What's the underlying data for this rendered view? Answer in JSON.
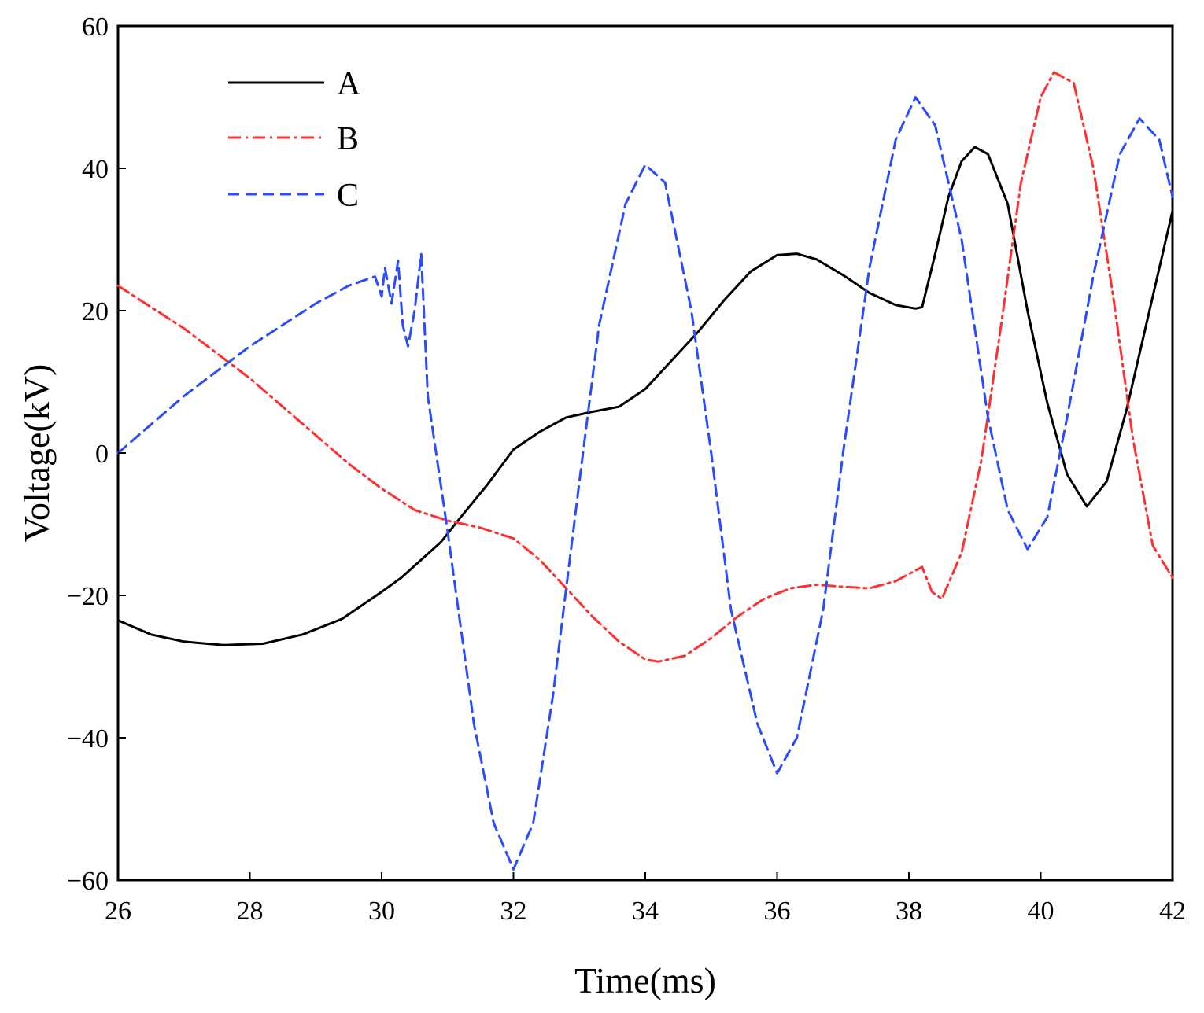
{
  "chart_data": {
    "type": "line",
    "title": "",
    "xlabel": "Time(ms)",
    "ylabel": "Voltage(kV)",
    "xlim": [
      26,
      42
    ],
    "ylim": [
      -60,
      60
    ],
    "xticks": [
      26,
      28,
      30,
      32,
      34,
      36,
      38,
      40,
      42
    ],
    "yticks": [
      60,
      40,
      20,
      0,
      -20,
      -40,
      -60
    ],
    "ytick_labels": [
      "60",
      "40",
      "20",
      "0",
      "−20",
      "−40",
      "−60"
    ],
    "grid": false,
    "legend_position": "top-left",
    "series": [
      {
        "name": "A",
        "color": "#000000",
        "style": "solid",
        "x": [
          26,
          26.5,
          27,
          27.6,
          28.2,
          28.8,
          29.4,
          30,
          30.3,
          30.6,
          30.9,
          31.2,
          31.6,
          32,
          32.4,
          32.8,
          33.2,
          33.6,
          34,
          34.4,
          34.8,
          35.2,
          35.6,
          36,
          36.3,
          36.6,
          37,
          37.4,
          37.8,
          38.1,
          38.2,
          38.4,
          38.6,
          38.8,
          39,
          39.2,
          39.5,
          39.8,
          40.1,
          40.4,
          40.7,
          41,
          41.3,
          41.6,
          42
        ],
        "values": [
          -23.5,
          -25.5,
          -26.5,
          -27,
          -26.8,
          -25.5,
          -23.3,
          -19.5,
          -17.5,
          -15,
          -12.5,
          -9,
          -4.5,
          0.5,
          3,
          5,
          5.8,
          6.5,
          9,
          13,
          17,
          21.5,
          25.5,
          27.8,
          28,
          27.2,
          25,
          22.5,
          20.8,
          20.3,
          20.5,
          28,
          36,
          41,
          43,
          42,
          35,
          20,
          7,
          -3,
          -7.5,
          -4,
          6,
          18,
          34
        ]
      },
      {
        "name": "B",
        "color": "#ff3030",
        "style": "dashdot",
        "x": [
          26,
          26.5,
          27,
          27.5,
          28,
          28.5,
          29,
          29.5,
          30,
          30.5,
          31,
          31.5,
          32,
          32.4,
          32.8,
          33.2,
          33.6,
          34,
          34.2,
          34.6,
          35,
          35.4,
          35.8,
          36.2,
          36.6,
          37,
          37.4,
          37.8,
          38.2,
          38.35,
          38.5,
          38.8,
          39.1,
          39.4,
          39.7,
          40,
          40.2,
          40.5,
          40.8,
          41.1,
          41.4,
          41.7,
          42
        ],
        "values": [
          23.5,
          20.5,
          17.5,
          14,
          10.5,
          6.5,
          2.5,
          -1.5,
          -5,
          -8,
          -9.5,
          -10.5,
          -12,
          -15,
          -19,
          -23,
          -26.5,
          -29,
          -29.3,
          -28.5,
          -26,
          -23,
          -20.5,
          -19,
          -18.5,
          -18.8,
          -19,
          -18,
          -16,
          -19.5,
          -20.5,
          -14,
          -1,
          18,
          38,
          50,
          53.5,
          52,
          40,
          22,
          2,
          -13,
          -17.5
        ]
      },
      {
        "name": "C",
        "color": "#2a4bff",
        "style": "dashed",
        "x": [
          26,
          26.5,
          27,
          27.5,
          28,
          28.5,
          29,
          29.5,
          29.9,
          30,
          30.05,
          30.15,
          30.25,
          30.32,
          30.4,
          30.5,
          30.6,
          30.65,
          30.7,
          31,
          31.4,
          31.7,
          32,
          32.3,
          32.6,
          33,
          33.3,
          33.7,
          34,
          34.3,
          34.7,
          35,
          35.3,
          35.7,
          36,
          36.3,
          36.7,
          37,
          37.4,
          37.8,
          38.1,
          38.4,
          38.8,
          39.2,
          39.5,
          39.8,
          40.1,
          40.4,
          40.8,
          41.2,
          41.5,
          41.8,
          42
        ],
        "values": [
          0,
          4,
          8,
          11.5,
          15,
          18,
          21,
          23.5,
          24.8,
          22,
          26,
          21,
          27,
          18,
          15,
          20,
          28,
          18,
          8,
          -11,
          -38,
          -52,
          -58.5,
          -52,
          -34,
          -4,
          18,
          35,
          40.5,
          38,
          20,
          0,
          -22,
          -38,
          -45,
          -40,
          -22,
          0,
          26,
          44,
          50,
          46,
          30,
          5,
          -8,
          -13.5,
          -9,
          5,
          25,
          42,
          47,
          44,
          36
        ]
      }
    ]
  }
}
